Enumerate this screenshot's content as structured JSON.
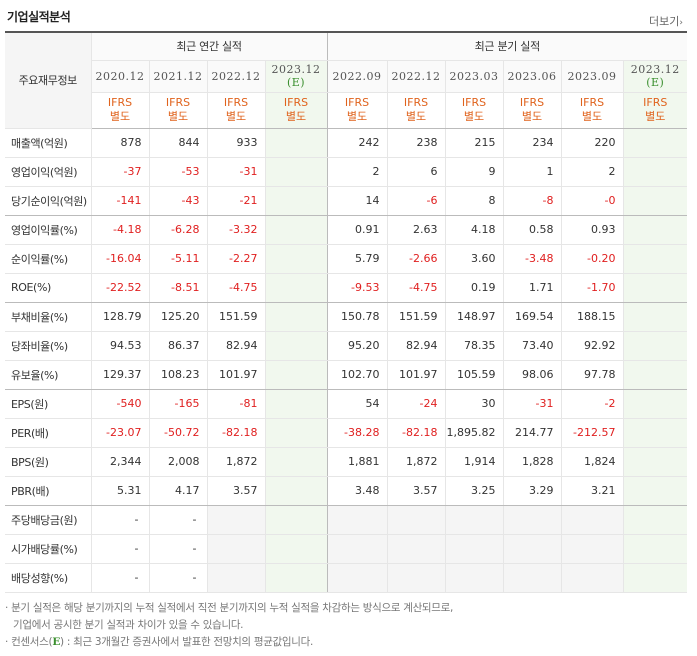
{
  "title": "기업실적분석",
  "more_label": "더보기",
  "more_arrow": "›",
  "corner_label": "주요재무정보",
  "annual_group": "최근 연간 실적",
  "quarter_group": "최근 분기 실적",
  "periods": [
    {
      "label": "2020.12",
      "est": ""
    },
    {
      "label": "2021.12",
      "est": ""
    },
    {
      "label": "2022.12",
      "est": ""
    },
    {
      "label": "2023.12",
      "est": "(E)"
    },
    {
      "label": "2022.09",
      "est": ""
    },
    {
      "label": "2022.12",
      "est": ""
    },
    {
      "label": "2023.03",
      "est": ""
    },
    {
      "label": "2023.06",
      "est": ""
    },
    {
      "label": "2023.09",
      "est": ""
    },
    {
      "label": "2023.12",
      "est": "(E)"
    }
  ],
  "ifrs": [
    "IFRS",
    "별도"
  ],
  "rows": [
    {
      "label": "매출액(억원)",
      "values": [
        "878",
        "844",
        "933",
        "",
        "242",
        "238",
        "215",
        "234",
        "220",
        ""
      ]
    },
    {
      "label": "영업이익(억원)",
      "values": [
        "-37",
        "-53",
        "-31",
        "",
        "2",
        "6",
        "9",
        "1",
        "2",
        ""
      ]
    },
    {
      "label": "당기순이익(억원)",
      "values": [
        "-141",
        "-43",
        "-21",
        "",
        "14",
        "-6",
        "8",
        "-8",
        "-0",
        ""
      ]
    },
    {
      "label": "영업이익률(%)",
      "values": [
        "-4.18",
        "-6.28",
        "-3.32",
        "",
        "0.91",
        "2.63",
        "4.18",
        "0.58",
        "0.93",
        ""
      ]
    },
    {
      "label": "순이익률(%)",
      "values": [
        "-16.04",
        "-5.11",
        "-2.27",
        "",
        "5.79",
        "-2.66",
        "3.60",
        "-3.48",
        "-0.20",
        ""
      ]
    },
    {
      "label": "ROE(%)",
      "values": [
        "-22.52",
        "-8.51",
        "-4.75",
        "",
        "-9.53",
        "-4.75",
        "0.19",
        "1.71",
        "-1.70",
        ""
      ]
    },
    {
      "label": "부채비율(%)",
      "values": [
        "128.79",
        "125.20",
        "151.59",
        "",
        "150.78",
        "151.59",
        "148.97",
        "169.54",
        "188.15",
        ""
      ]
    },
    {
      "label": "당좌비율(%)",
      "values": [
        "94.53",
        "86.37",
        "82.94",
        "",
        "95.20",
        "82.94",
        "78.35",
        "73.40",
        "92.92",
        ""
      ]
    },
    {
      "label": "유보율(%)",
      "values": [
        "129.37",
        "108.23",
        "101.97",
        "",
        "102.70",
        "101.97",
        "105.59",
        "98.06",
        "97.78",
        ""
      ]
    },
    {
      "label": "EPS(원)",
      "values": [
        "-540",
        "-165",
        "-81",
        "",
        "54",
        "-24",
        "30",
        "-31",
        "-2",
        ""
      ]
    },
    {
      "label": "PER(배)",
      "values": [
        "-23.07",
        "-50.72",
        "-82.18",
        "",
        "-38.28",
        "-82.18",
        "1,895.82",
        "214.77",
        "-212.57",
        ""
      ]
    },
    {
      "label": "BPS(원)",
      "values": [
        "2,344",
        "2,008",
        "1,872",
        "",
        "1,881",
        "1,872",
        "1,914",
        "1,828",
        "1,824",
        ""
      ]
    },
    {
      "label": "PBR(배)",
      "values": [
        "5.31",
        "4.17",
        "3.57",
        "",
        "3.48",
        "3.57",
        "3.25",
        "3.29",
        "3.21",
        ""
      ]
    },
    {
      "label": "주당배당금(원)",
      "values": [
        "-",
        "-",
        "",
        "",
        "",
        "",
        "",
        "",
        "",
        ""
      ]
    },
    {
      "label": "시가배당률(%)",
      "values": [
        "-",
        "-",
        "",
        "",
        "",
        "",
        "",
        "",
        "",
        ""
      ]
    },
    {
      "label": "배당성향(%)",
      "values": [
        "-",
        "-",
        "",
        "",
        "",
        "",
        "",
        "",
        "",
        ""
      ]
    }
  ],
  "notes": {
    "line1": "· 분기 실적은 해당 분기까지의 누적 실적에서 직전 분기까지의 누적 실적을 차감하는 방식으로 계산되므로,",
    "line2": "기업에서 공시한 분기 실적과 차이가 있을 수 있습니다.",
    "line3_pre": "· 컨센서스(",
    "line3_e": "E",
    "line3_post": ") : 최근 3개월간 증권사에서 발표한 전망치의 평균값입니다."
  },
  "colors": {
    "negative": "#e02020",
    "ifrs": "#e0631d",
    "estimate_bg": "#f1f8ee"
  }
}
